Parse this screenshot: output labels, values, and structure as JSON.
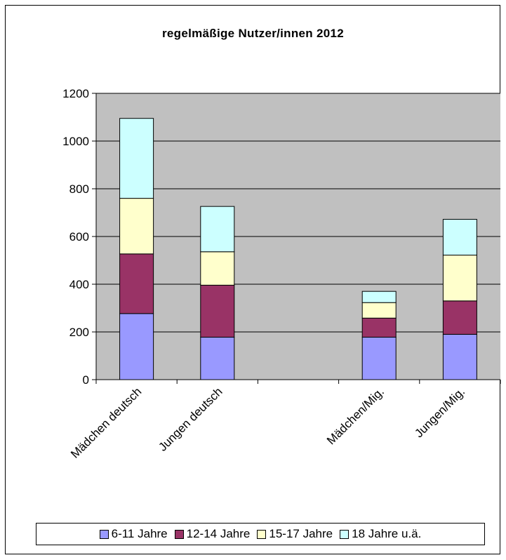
{
  "chart_data": {
    "type": "bar",
    "stacked": true,
    "title": "regelmäßige Nutzer/innen 2012",
    "xlabel": "",
    "ylabel": "",
    "ylim": [
      0,
      1200
    ],
    "yticks": [
      "0",
      "200",
      "400",
      "600",
      "800",
      "1000",
      "1200"
    ],
    "grid": true,
    "legend_position": "bottom",
    "categories": [
      "Mädchen deutsch",
      "Jungen deutsch",
      "",
      "Mädchen/Mig.",
      "Jungen/Mig."
    ],
    "series": [
      {
        "name": "6-11 Jahre",
        "color": "#9999ff",
        "values": [
          277,
          178,
          0,
          178,
          190
        ]
      },
      {
        "name": "12-14 Jahre",
        "color": "#993366",
        "values": [
          250,
          218,
          0,
          80,
          140
        ]
      },
      {
        "name": "15-17 Jahre",
        "color": "#ffffcc",
        "values": [
          233,
          140,
          0,
          65,
          192
        ]
      },
      {
        "name": "18 Jahre u.ä.",
        "color": "#ccffff",
        "values": [
          335,
          190,
          0,
          47,
          150
        ]
      }
    ],
    "plot_background": "#c0c0c0"
  }
}
